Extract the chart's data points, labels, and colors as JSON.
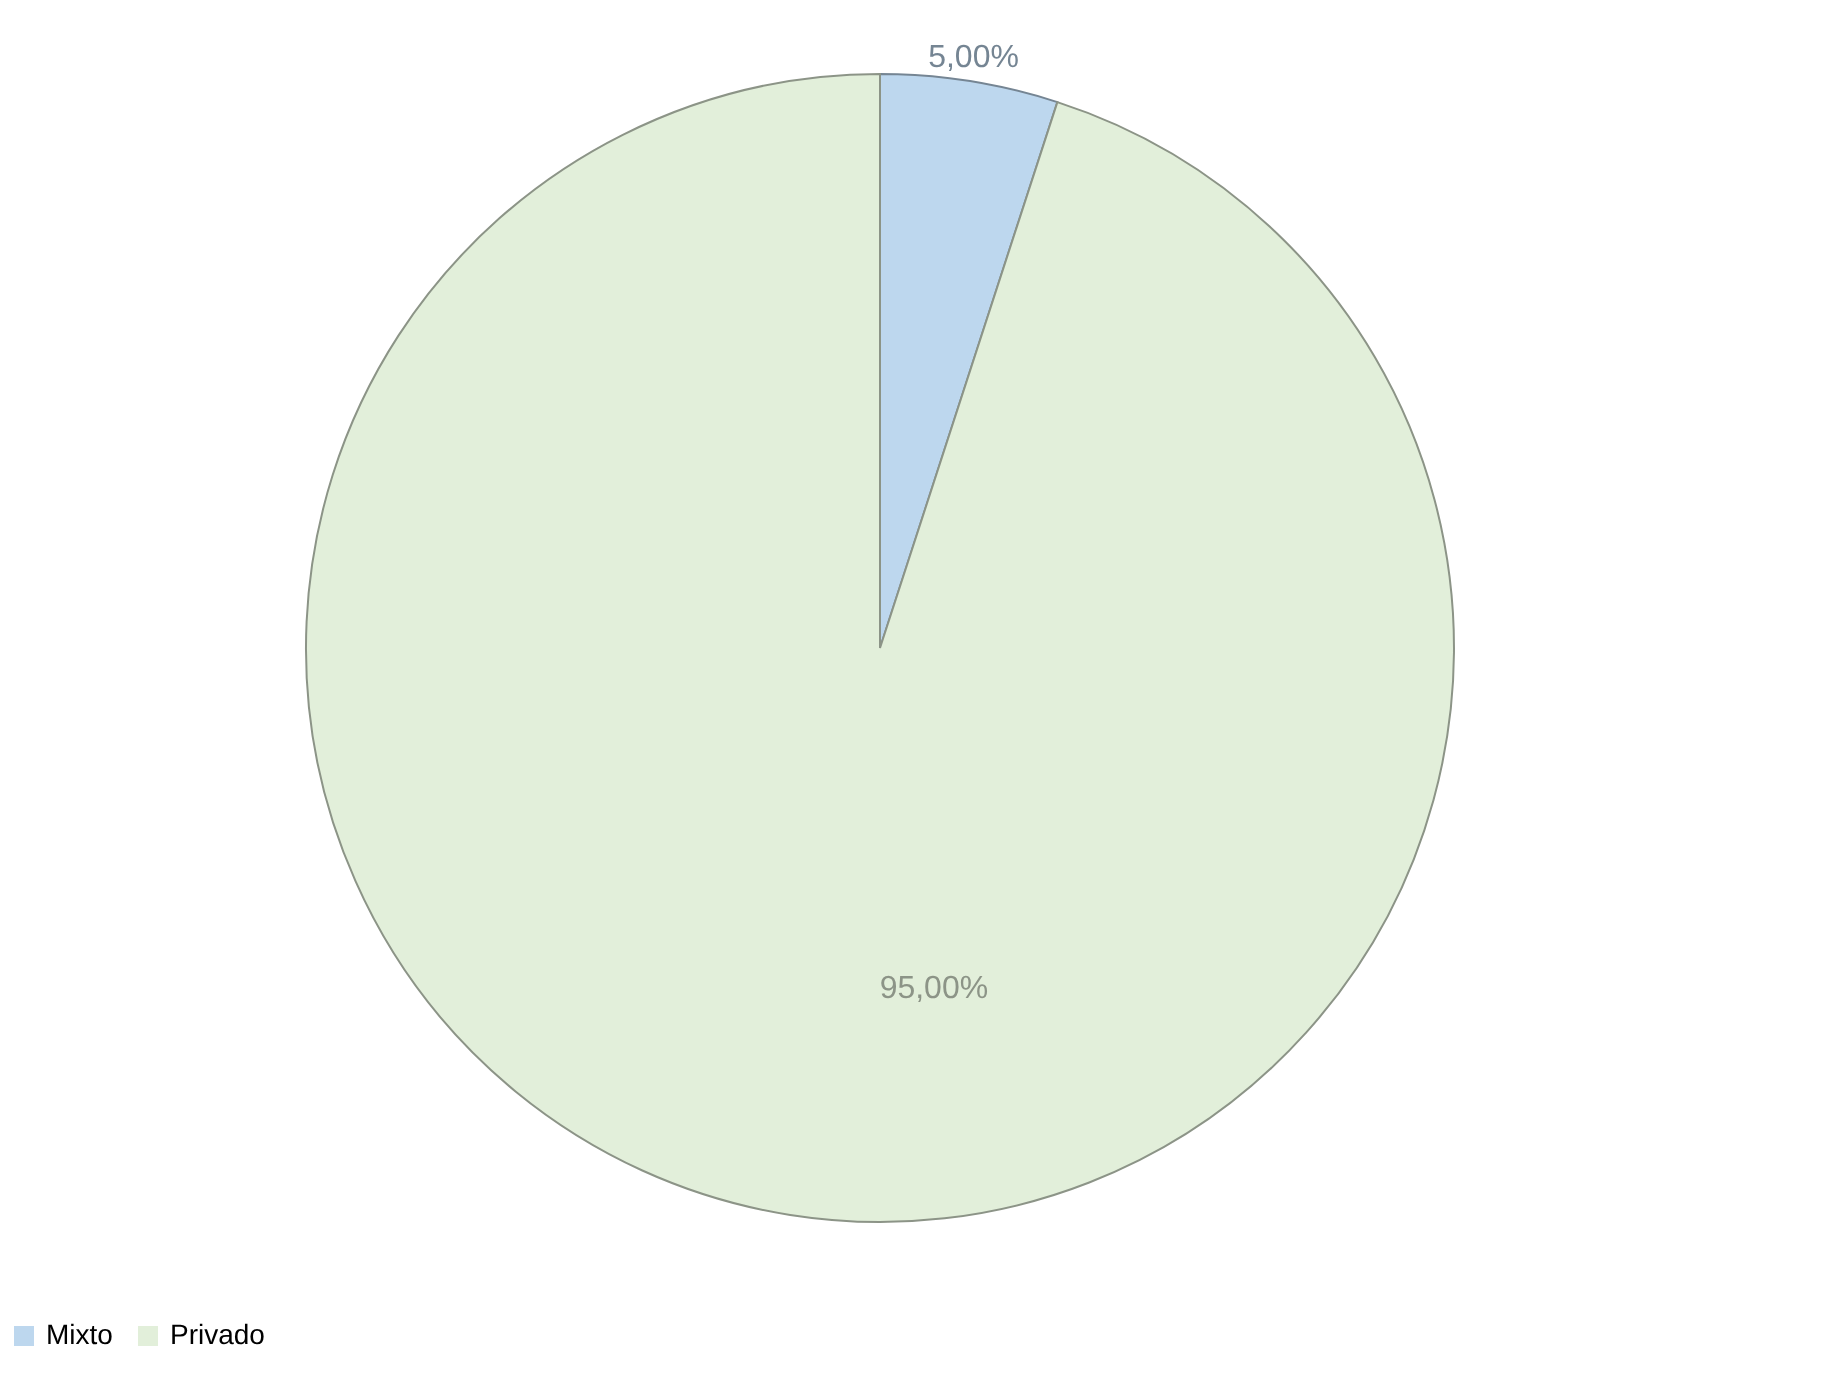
{
  "chart_data": {
    "type": "pie",
    "categories": [
      "Mixto",
      "Privado"
    ],
    "values": [
      5,
      95
    ],
    "colors": [
      "#bdd7ee",
      "#e2efda"
    ],
    "value_labels": [
      "5,00%",
      "95,00%"
    ],
    "legend": "bottom"
  }
}
